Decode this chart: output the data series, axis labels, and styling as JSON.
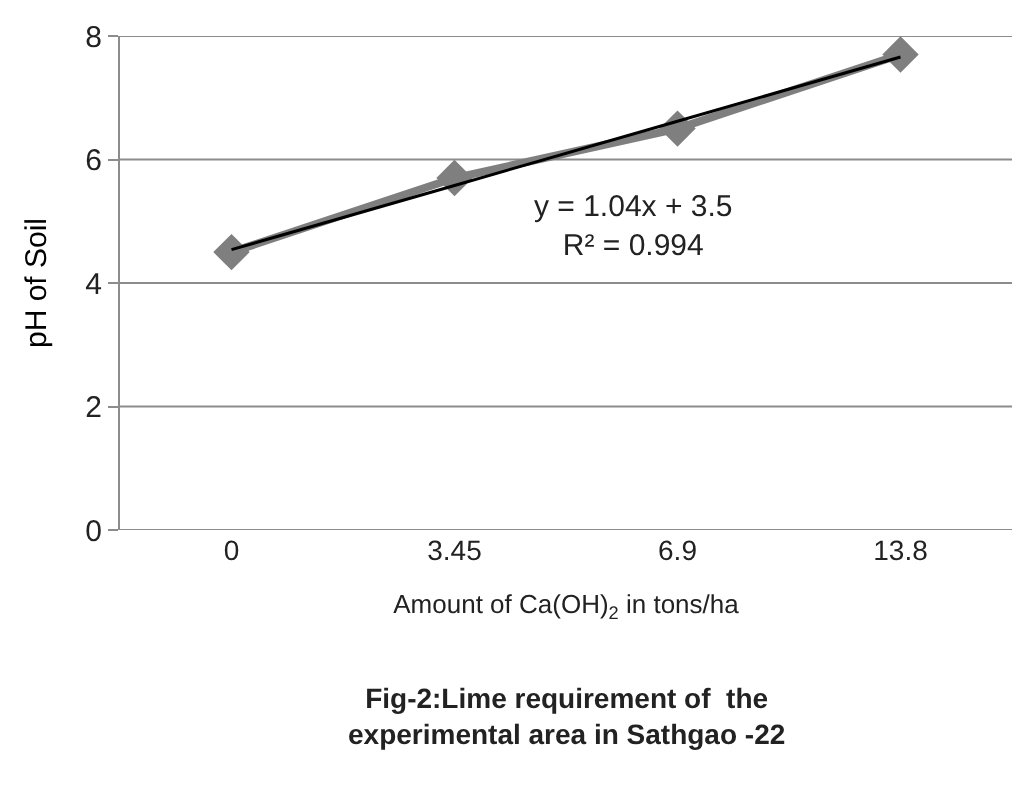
{
  "chart_data": {
    "type": "line",
    "title": "Fig-2:Lime requirement of  the\nexperimental area in Sathgao -22",
    "xlabel": "Amount of Ca(OH)$_{2}$ in tons/ha",
    "ylabel": "pH of Soil",
    "categories": [
      "0",
      "3.45",
      "6.9",
      "13.8"
    ],
    "series": [
      {
        "color": "#7f7f7f",
        "values": [
          4.5,
          5.7,
          6.5,
          7.7
        ],
        "marker": "diamond"
      },
      {
        "type": "line",
        "color": "#000000",
        "values": [
          4.54,
          5.58,
          6.62,
          7.66
        ],
        "marker": "none"
      }
    ],
    "ylim": [
      0,
      8
    ],
    "yticks": [
      0,
      2,
      4,
      6,
      8
    ],
    "grid": "y",
    "annotations": [
      "y = 1.04x + 3.5\nR² = 0.994"
    ]
  }
}
